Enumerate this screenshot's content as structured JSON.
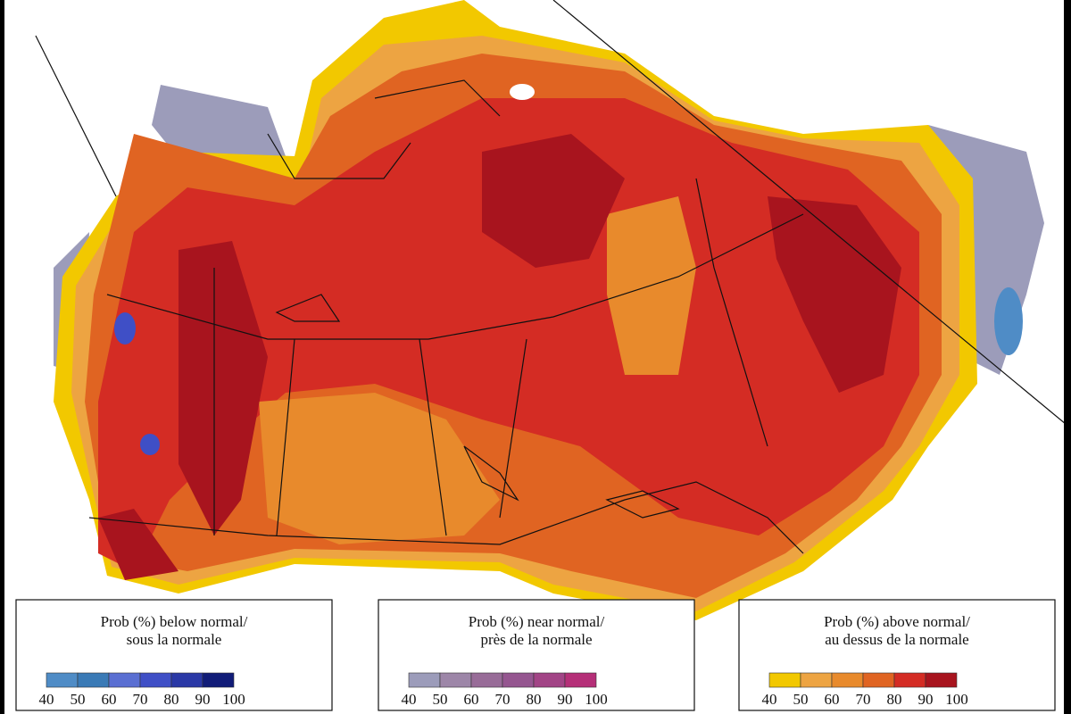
{
  "legends": [
    {
      "title_lines": [
        "Prob (%) below normal/",
        "sous la normale"
      ],
      "colors": [
        "#4f8cc6",
        "#3a7ab6",
        "#5a6fd2",
        "#3f4fc6",
        "#2a38a6",
        "#111c78"
      ],
      "ticks": [
        40,
        50,
        60,
        70,
        80,
        90,
        100
      ]
    },
    {
      "title_lines": [
        "Prob (%) near normal/",
        "près de la normale"
      ],
      "colors": [
        "#9c9cba",
        "#9d86a8",
        "#986c98",
        "#955690",
        "#a24486",
        "#b52f78"
      ],
      "ticks": [
        40,
        50,
        60,
        70,
        80,
        90,
        100
      ]
    },
    {
      "title_lines": [
        "Prob (%) above normal/",
        "au dessus de la normale"
      ],
      "colors": [
        "#f2c800",
        "#eda442",
        "#e88a2c",
        "#e06422",
        "#d42c24",
        "#a8141e"
      ],
      "ticks": [
        40,
        50,
        60,
        70,
        80,
        90,
        100
      ]
    }
  ]
}
